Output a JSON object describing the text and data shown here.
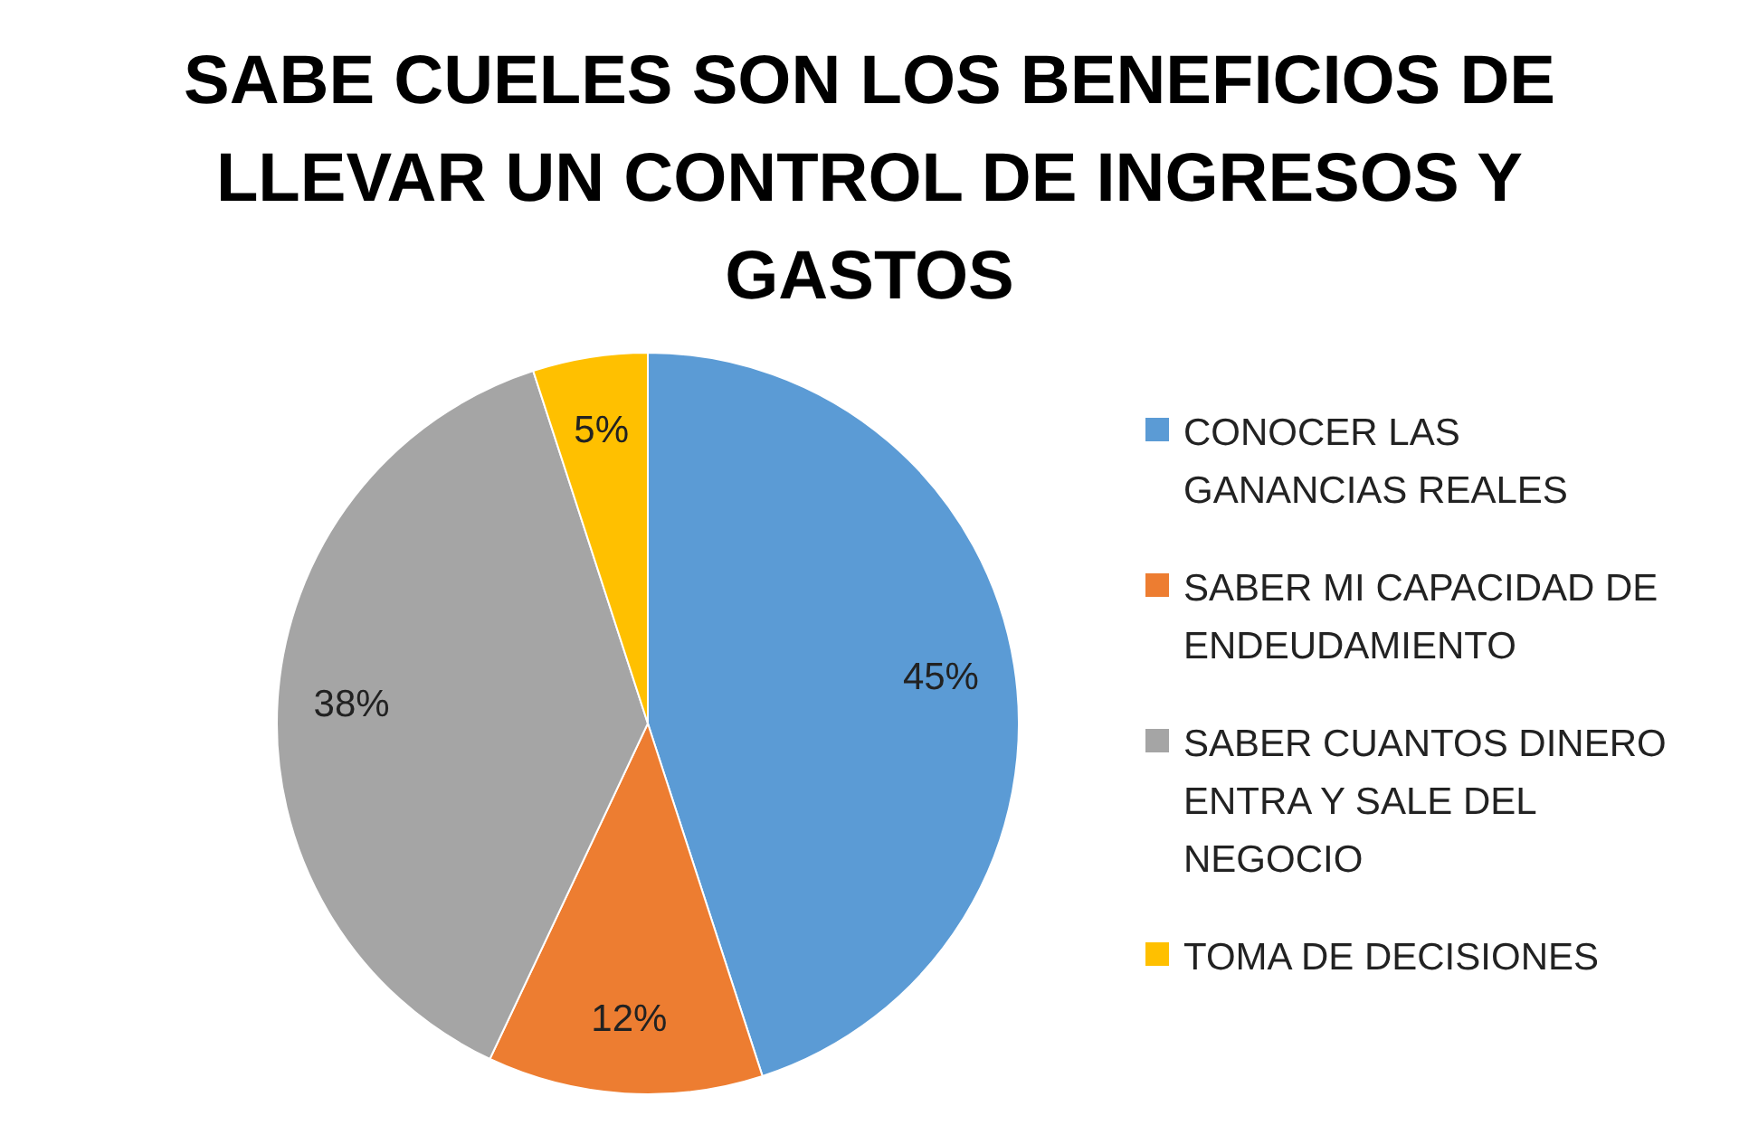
{
  "chart_data": {
    "type": "pie",
    "title": "SABE CUELES SON LOS BENEFICIOS DE LLEVAR UN CONTROL DE INGRESOS Y GASTOS",
    "categories": [
      "CONOCER LAS GANANCIAS REALES",
      "SABER MI CAPACIDAD DE ENDEUDAMIENTO",
      "SABER CUANTOS DINERO ENTRA Y SALE DEL NEGOCIO",
      "TOMA DE DECISIONES"
    ],
    "values": [
      45,
      12,
      38,
      5
    ],
    "value_labels": [
      "45%",
      "12%",
      "38%",
      "5%"
    ],
    "colors": [
      "#5b9bd5",
      "#ed7d31",
      "#a5a5a5",
      "#ffc000"
    ],
    "legend": "right"
  }
}
